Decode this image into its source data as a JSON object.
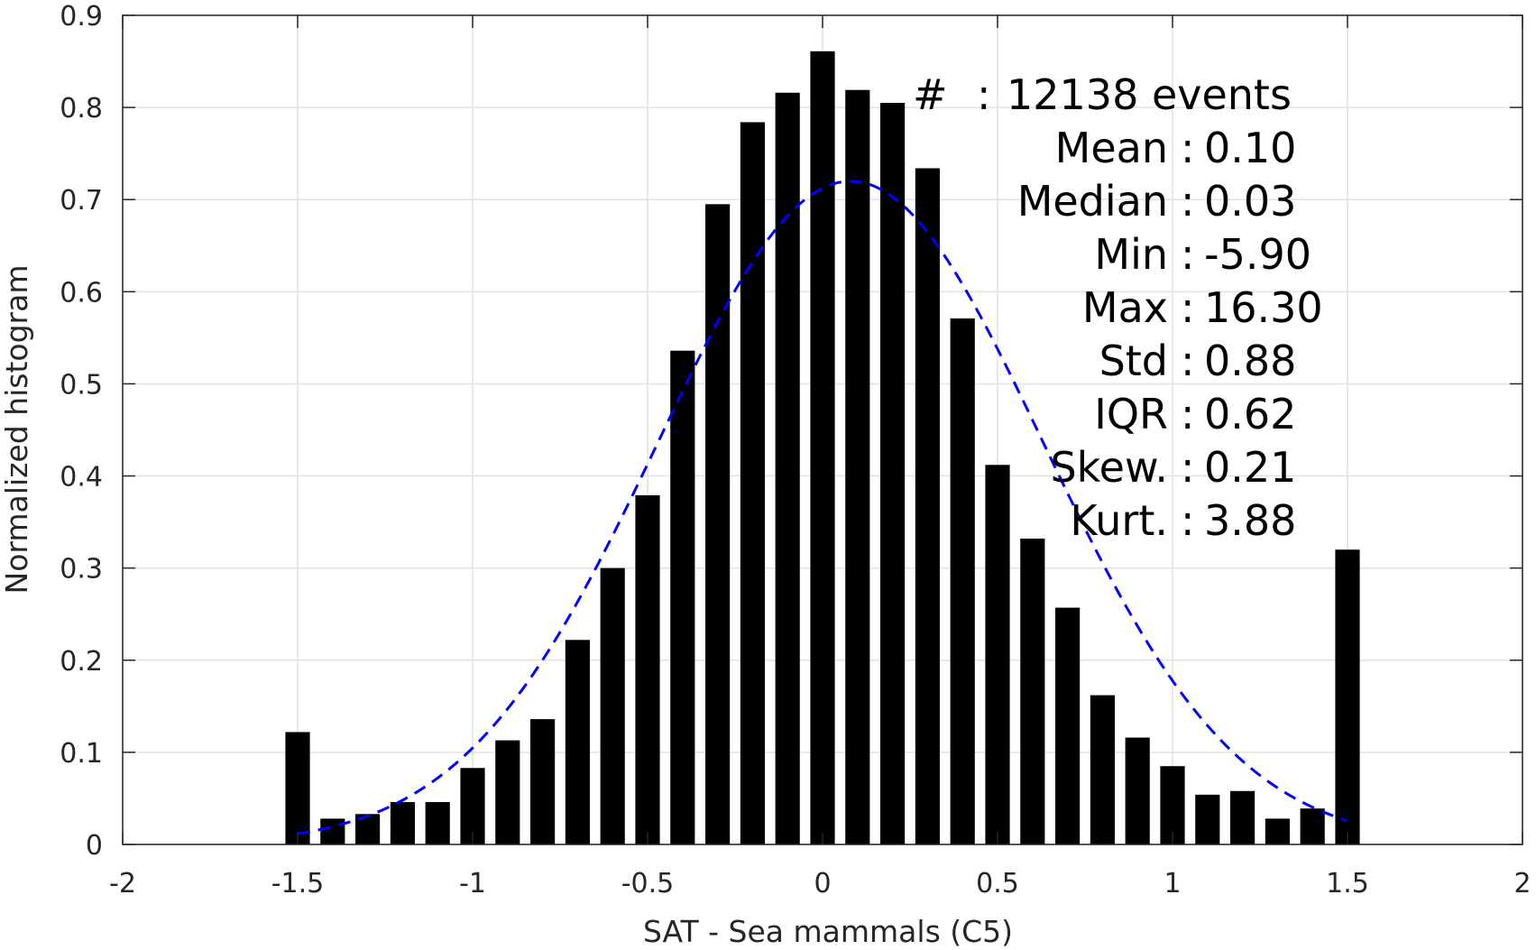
{
  "chart_data": {
    "type": "bar",
    "xlabel": "SAT - Sea mammals (C5)",
    "ylabel": "Normalized histogram",
    "xlim": [
      -2,
      2
    ],
    "ylim": [
      0,
      0.9
    ],
    "xticks": [
      -2,
      -1.5,
      -1,
      -0.5,
      0,
      0.5,
      1,
      1.5,
      2
    ],
    "xtick_labels": [
      "-2",
      "-1.5",
      "-1",
      "-0.5",
      "0",
      "0.5",
      "1",
      "1.5",
      "2"
    ],
    "yticks": [
      0,
      0.1,
      0.2,
      0.3,
      0.4,
      0.5,
      0.6,
      0.7,
      0.8,
      0.9
    ],
    "ytick_labels": [
      "0",
      "0.1",
      "0.2",
      "0.3",
      "0.4",
      "0.5",
      "0.6",
      "0.7",
      "0.8",
      "0.9"
    ],
    "grid": true,
    "bar_color": "#000000",
    "bins": [
      -1.5,
      -1.4,
      -1.3,
      -1.2,
      -1.1,
      -1.0,
      -0.9,
      -0.8,
      -0.7,
      -0.6,
      -0.5,
      -0.4,
      -0.3,
      -0.2,
      -0.1,
      0.0,
      0.1,
      0.2,
      0.3,
      0.4,
      0.5,
      0.6,
      0.7,
      0.8,
      0.9,
      1.0,
      1.1,
      1.2,
      1.3,
      1.4,
      1.5
    ],
    "values": [
      0.122,
      0.028,
      0.033,
      0.046,
      0.046,
      0.083,
      0.113,
      0.136,
      0.222,
      0.3,
      0.379,
      0.536,
      0.695,
      0.784,
      0.816,
      0.861,
      0.819,
      0.805,
      0.734,
      0.571,
      0.412,
      0.332,
      0.257,
      0.162,
      0.116,
      0.085,
      0.054,
      0.058,
      0.028,
      0.039,
      0.32
    ],
    "fit_curve": {
      "type": "normal",
      "mean": 0.08,
      "std": 0.55,
      "x_range": [
        -1.5,
        1.5
      ],
      "color": "#0000ff",
      "style": "dashed"
    },
    "stats": [
      {
        "label": "#",
        "sep": ":",
        "value": "12138 events"
      },
      {
        "label": "Mean",
        "sep": ":",
        "value": "0.10"
      },
      {
        "label": "Median",
        "sep": ":",
        "value": "0.03"
      },
      {
        "label": "Min",
        "sep": ":",
        "value": "-5.90"
      },
      {
        "label": "Max",
        "sep": ":",
        "value": "16.30"
      },
      {
        "label": "Std",
        "sep": ":",
        "value": "0.88"
      },
      {
        "label": "IQR",
        "sep": ":",
        "value": "0.62"
      },
      {
        "label": "Skew.",
        "sep": ":",
        "value": "0.21"
      },
      {
        "label": "Kurt.",
        "sep": ":",
        "value": "3.88"
      }
    ]
  }
}
